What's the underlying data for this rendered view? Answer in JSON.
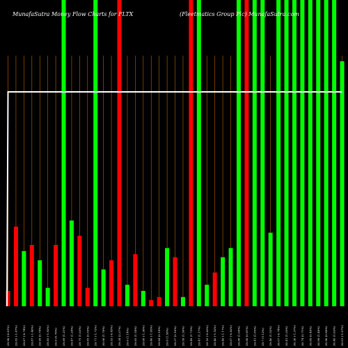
{
  "chart_data": {
    "type": "bar",
    "title_left": "MunafaSutra  Money Flow  Charts for FLTX",
    "title_right": "(Fleetmatics Group Plc) MunafaSutra.com",
    "colors": {
      "background": "#000000",
      "red": "#ff0000",
      "green": "#00ff00",
      "line": "#ffffff",
      "grid": "#b86a00"
    },
    "ylim": [
      0,
      100
    ],
    "categories": [
      "29.98 (-0.61%)",
      "29.83 (-1.47%)",
      "29.67 (-0.74%)",
      "29.87 (-1.46%)",
      "29.99 (0.74%)",
      "29.85 (-1.92%)",
      "29.6 (0.76%)",
      "29.89 (1.21%)",
      "29.47 (1.24%)",
      "29.75 (1.03%)",
      "29.65 (0.55%)",
      "29.71 (-1.72%)",
      "30.06 (1.78%)",
      "29.53 (-0.45%)",
      "29.34 (2.37%)",
      "29.6 (1.14%)",
      "29.65 (1.54%)",
      "29.08 (-1.36%)",
      "29.46 (-1.95%)",
      "29.84 (0.14%)",
      "29.8 (1.58%)",
      "29.37 (0.16%)",
      "29.59 (1.36%)",
      "29.49 (1.73%)",
      "29.47 (1.17%)",
      "29.16 (-0.83%)",
      "29.46 (-1.52%)",
      "29.46 (-1.17%)",
      "29.67 (-0.82%)",
      "29.88 (1.08%)",
      "29.68 (0.91%)",
      "29.41 (1.85%)",
      "29.7 (1.12%)",
      "29.46 (1.52%)",
      "30.07 (-0.74%)",
      "30.41 (1.35%)",
      "30.38 (-1.37%)",
      "30.74 (0.71%)",
      "30.89 (0.48%)",
      "30.99 (1.48%)",
      "30.96 (0.98%)",
      "30.46 (1.63%)",
      "30.01 (-1.07%)"
    ],
    "series": [
      {
        "type": "bar",
        "colors": [
          "red",
          "red",
          "green",
          "red",
          "green",
          "green",
          "red",
          "green",
          "green",
          "red",
          "red",
          "green",
          "green",
          "red",
          "red",
          "green",
          "red",
          "green",
          "red",
          "red",
          "green",
          "red",
          "green",
          "red",
          "green",
          "green",
          "red",
          "green",
          "green",
          "green",
          "red",
          "green",
          "green",
          "green",
          "green",
          "green",
          "green",
          "green",
          "green",
          "green",
          "green",
          "green",
          "green"
        ],
        "values": [
          5,
          26,
          18,
          20,
          15,
          6,
          20,
          100,
          28,
          23,
          6,
          100,
          12,
          15,
          100,
          7,
          17,
          5,
          2,
          3,
          19,
          16,
          3,
          100,
          100,
          7,
          11,
          16,
          19,
          100,
          100,
          100,
          100,
          24,
          100,
          100,
          100,
          100,
          100,
          100,
          100,
          100,
          80
        ]
      },
      {
        "type": "line",
        "values": [
          70,
          70,
          70,
          70,
          70,
          70,
          70,
          70,
          70,
          70,
          70,
          70,
          70,
          70,
          70,
          70,
          70,
          70,
          70,
          70,
          70,
          70,
          70,
          70,
          70,
          70,
          70,
          70,
          70,
          70,
          70,
          70,
          70,
          70,
          70,
          70,
          70,
          70,
          70,
          70,
          70,
          70,
          70
        ],
        "start_value": 0
      }
    ],
    "grid": true
  }
}
